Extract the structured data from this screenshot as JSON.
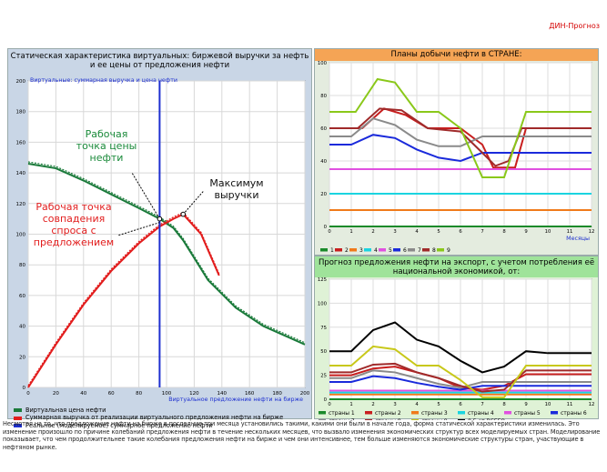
{
  "brand": "ДИН-Прогноз",
  "left_panel": {
    "title": "Статическая характеристика виртуальных: биржевой выручки за нефть и ее цены от предложения нефти",
    "ytitle": "Виртуальные: суммарная выручка и цена нефти",
    "xtitle": "Виртуальное предложение нефти на бирже",
    "annotations": {
      "price_point": "Рабочая точка цены нефти",
      "max_revenue": "Максимум выручки",
      "demand_point": "Рабочая точка совпадения спроса с предложением"
    },
    "legend": [
      {
        "label": "Виртуальная цена нефти",
        "color": "#1a7a3a"
      },
      {
        "label": "Суммарная выручка от реализации виртуального предложения нефти на бирже",
        "color": "#e21d1d"
      },
      {
        "label": "Реальное (моделируемое) суммарное предложение нефти",
        "color": "#1d2fd0"
      }
    ]
  },
  "top_right_panel": {
    "title": "Планы добычи нефти в СТРАНЕ:",
    "xlabel": "Месяцы",
    "legend": [
      {
        "label": "1",
        "color": "#1a8a2a"
      },
      {
        "label": "2",
        "color": "#c81e1e"
      },
      {
        "label": "3",
        "color": "#f07a1a"
      },
      {
        "label": "4",
        "color": "#1ad4e0"
      },
      {
        "label": "5",
        "color": "#e050e0"
      },
      {
        "label": "6",
        "color": "#1a2adb"
      },
      {
        "label": "7",
        "color": "#8a8a8a"
      },
      {
        "label": "8",
        "color": "#a02a2a"
      },
      {
        "label": "9",
        "color": "#8ac81a"
      }
    ]
  },
  "bottom_right_panel": {
    "title": "Прогноз предложения нефти на экспорт, с учетом потребления её национальной экономикой, от:",
    "legend": [
      {
        "label": "страны 1",
        "color": "#1a8a2a"
      },
      {
        "label": "страны 2",
        "color": "#c81e1e"
      },
      {
        "label": "страны 3",
        "color": "#f07a1a"
      },
      {
        "label": "страны 4",
        "color": "#1ad4e0"
      },
      {
        "label": "страны 5",
        "color": "#e050e0"
      },
      {
        "label": "страны 6",
        "color": "#1a2adb"
      },
      {
        "label": "страны 7",
        "color": "#8a8a8a"
      },
      {
        "label": "страны 8",
        "color": "#a02a2a"
      },
      {
        "label": "страны 9",
        "color": "#c8c81a"
      },
      {
        "label": "0.5 от ВСЕГО",
        "color": "#000000"
      }
    ]
  },
  "chart_data": [
    {
      "type": "line",
      "title": "Статическая характеристика виртуальных: биржевой выручки за нефть и ее цены от предложения нефти",
      "xlabel": "Виртуальное предложение нефти на бирже",
      "ylabel": "Виртуальные: суммарная выручка и цена нефти",
      "xlim": [
        0,
        200
      ],
      "ylim": [
        0,
        200
      ],
      "xticks": [
        0,
        20,
        40,
        60,
        80,
        100,
        120,
        140,
        160,
        180,
        200
      ],
      "yticks": [
        0,
        20,
        40,
        60,
        80,
        100,
        120,
        140,
        160,
        180,
        200
      ],
      "series": [
        {
          "name": "Виртуальная цена нефти",
          "x": [
            0,
            20,
            40,
            60,
            80,
            95,
            105,
            112,
            130,
            150,
            170,
            200
          ],
          "y": [
            146,
            143,
            135,
            126,
            117,
            110,
            104,
            96,
            70,
            52,
            40,
            28
          ]
        },
        {
          "name": "Суммарная выручка",
          "x": [
            0,
            20,
            40,
            60,
            80,
            95,
            105,
            112,
            125,
            138
          ],
          "y": [
            0,
            28,
            54,
            76,
            94,
            105,
            110,
            113,
            100,
            73
          ]
        },
        {
          "name": "Реальное суммарное предложение нефти",
          "x": [
            95,
            95
          ],
          "y": [
            0,
            200
          ]
        }
      ]
    },
    {
      "type": "line",
      "title": "Планы добычи нефти в СТРАНЕ:",
      "xlabel": "Месяцы",
      "xlim": [
        0,
        12
      ],
      "ylim": [
        0,
        100
      ],
      "xticks": [
        0,
        1,
        2,
        3,
        4,
        5,
        6,
        7,
        8,
        9,
        10,
        11,
        12
      ],
      "yticks": [
        0,
        20,
        40,
        60,
        80,
        100
      ],
      "series": [
        {
          "name": "1",
          "x": [
            0,
            12
          ],
          "y": [
            0,
            0
          ]
        },
        {
          "name": "2",
          "x": [
            0,
            1.5,
            2.5,
            3.5,
            4.5,
            6,
            7,
            7.5,
            8.5,
            9,
            12
          ],
          "y": [
            60,
            60,
            72,
            68,
            60,
            60,
            50,
            36,
            36,
            60,
            60
          ]
        },
        {
          "name": "3",
          "x": [
            0,
            12
          ],
          "y": [
            10,
            10
          ]
        },
        {
          "name": "4",
          "x": [
            0,
            12
          ],
          "y": [
            20,
            20
          ]
        },
        {
          "name": "5",
          "x": [
            0,
            12
          ],
          "y": [
            35,
            35
          ]
        },
        {
          "name": "6",
          "x": [
            0,
            1,
            2,
            3,
            4,
            5,
            6,
            7,
            12
          ],
          "y": [
            50,
            50,
            56,
            54,
            47,
            42,
            40,
            45,
            45
          ]
        },
        {
          "name": "7",
          "x": [
            0,
            1,
            2,
            3,
            4,
            5,
            6,
            7,
            12
          ],
          "y": [
            55,
            55,
            66,
            62,
            53,
            49,
            49,
            55,
            55
          ]
        },
        {
          "name": "8",
          "x": [
            0,
            1.3,
            2.3,
            3.3,
            4.5,
            6,
            7,
            7.6,
            8.2,
            8.8,
            12
          ],
          "y": [
            60,
            60,
            72,
            71,
            60,
            58,
            45,
            37,
            40,
            60,
            60
          ]
        },
        {
          "name": "9",
          "x": [
            0,
            1.2,
            2.2,
            3,
            4,
            5,
            6,
            7,
            8,
            9,
            12
          ],
          "y": [
            70,
            70,
            90,
            88,
            70,
            70,
            60,
            30,
            30,
            70,
            70
          ]
        }
      ]
    },
    {
      "type": "line",
      "title": "Прогноз предложения нефти на экспорт, с учетом потребления её национальной экономикой, от:",
      "xlim": [
        0,
        12
      ],
      "ylim": [
        0,
        125
      ],
      "xticks": [
        0,
        1,
        2,
        3,
        4,
        5,
        6,
        7,
        8,
        9,
        10,
        11,
        12
      ],
      "yticks": [
        0,
        25,
        50,
        75,
        100,
        125
      ],
      "series": [
        {
          "name": "страны 1",
          "x": [
            0,
            12
          ],
          "y": [
            0,
            0
          ]
        },
        {
          "name": "страны 2",
          "x": [
            0,
            1,
            2,
            3,
            4,
            5,
            6,
            7,
            8,
            9,
            12
          ],
          "y": [
            25,
            25,
            32,
            34,
            28,
            22,
            12,
            10,
            14,
            26,
            26
          ]
        },
        {
          "name": "страны 3",
          "x": [
            0,
            12
          ],
          "y": [
            5,
            5
          ]
        },
        {
          "name": "страны 4",
          "x": [
            0,
            12
          ],
          "y": [
            7,
            7
          ]
        },
        {
          "name": "страны 5",
          "x": [
            0,
            12
          ],
          "y": [
            9,
            9
          ]
        },
        {
          "name": "страны 6",
          "x": [
            0,
            1,
            2,
            3,
            4,
            5,
            6,
            7,
            12
          ],
          "y": [
            18,
            18,
            24,
            22,
            17,
            13,
            10,
            14,
            14
          ]
        },
        {
          "name": "страны 7",
          "x": [
            0,
            1,
            2,
            3,
            4,
            5,
            6,
            7,
            12
          ],
          "y": [
            22,
            22,
            30,
            28,
            22,
            16,
            12,
            18,
            18
          ]
        },
        {
          "name": "страны 8",
          "x": [
            0,
            1,
            2,
            3,
            4,
            5,
            6,
            7,
            8,
            9,
            12
          ],
          "y": [
            28,
            28,
            36,
            37,
            28,
            22,
            14,
            8,
            10,
            30,
            30
          ]
        },
        {
          "name": "страны 9",
          "x": [
            0,
            1,
            2,
            3,
            4,
            5,
            6,
            7,
            8,
            9,
            12
          ],
          "y": [
            35,
            35,
            55,
            52,
            35,
            35,
            20,
            2,
            2,
            35,
            35
          ]
        },
        {
          "name": "0.5 от ВСЕГО",
          "x": [
            0,
            1,
            2,
            3,
            4,
            5,
            6,
            7,
            8,
            9,
            10,
            12
          ],
          "y": [
            50,
            50,
            72,
            80,
            62,
            55,
            40,
            28,
            34,
            50,
            48,
            48
          ]
        }
      ]
    }
  ],
  "note": "Несмотря на то, что предложение нефти на бирже в последние три месяца установились такими, какими они были в начале года, форма статической характеристики изменилась. Это изменение произошло по причине колебаний предложения нефти в течение нескольких месяцев, что вызвало изменения экономических структур всех моделируемых стран. Моделирование показывает, что чем продолжительнее такие колебания предложения нефти на бирже и чем они интенсивнее, тем больше изменяются экономические структуры стран, участвующие в нефтяном рынке."
}
